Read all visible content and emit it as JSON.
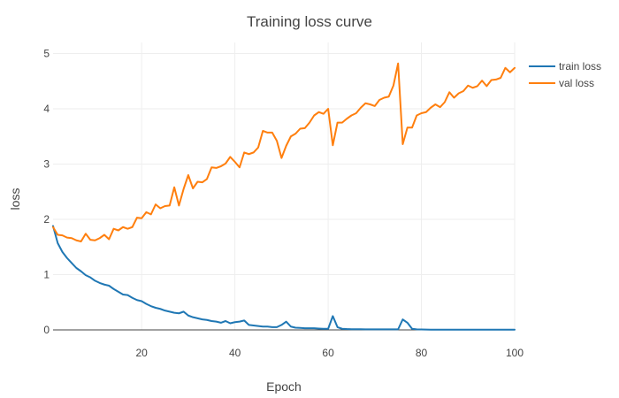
{
  "chart_data": {
    "type": "line",
    "title": "Training loss curve",
    "xlabel": "Epoch",
    "ylabel": "loss",
    "xlim": [
      1,
      100
    ],
    "ylim": [
      0,
      5.2
    ],
    "x_ticks": [
      20,
      40,
      60,
      80,
      100
    ],
    "y_ticks": [
      0,
      1,
      2,
      3,
      4,
      5
    ],
    "grid": true,
    "legend_position": "top-right",
    "x": [
      1,
      2,
      3,
      4,
      5,
      6,
      7,
      8,
      9,
      10,
      11,
      12,
      13,
      14,
      15,
      16,
      17,
      18,
      19,
      20,
      21,
      22,
      23,
      24,
      25,
      26,
      27,
      28,
      29,
      30,
      31,
      32,
      33,
      34,
      35,
      36,
      37,
      38,
      39,
      40,
      41,
      42,
      43,
      44,
      45,
      46,
      47,
      48,
      49,
      50,
      51,
      52,
      53,
      54,
      55,
      56,
      57,
      58,
      59,
      60,
      61,
      62,
      63,
      64,
      65,
      66,
      67,
      68,
      69,
      70,
      71,
      72,
      73,
      74,
      75,
      76,
      77,
      78,
      79,
      80,
      81,
      82,
      83,
      84,
      85,
      86,
      87,
      88,
      89,
      90,
      91,
      92,
      93,
      94,
      95,
      96,
      97,
      98,
      99,
      100
    ],
    "series": [
      {
        "name": "train loss",
        "color": "#1f77b4",
        "values": [
          1.88,
          1.57,
          1.41,
          1.3,
          1.21,
          1.12,
          1.06,
          0.99,
          0.95,
          0.89,
          0.85,
          0.82,
          0.8,
          0.74,
          0.69,
          0.64,
          0.63,
          0.58,
          0.54,
          0.52,
          0.47,
          0.43,
          0.4,
          0.38,
          0.35,
          0.33,
          0.31,
          0.3,
          0.33,
          0.26,
          0.23,
          0.21,
          0.19,
          0.18,
          0.16,
          0.15,
          0.13,
          0.16,
          0.12,
          0.14,
          0.15,
          0.17,
          0.09,
          0.08,
          0.07,
          0.06,
          0.06,
          0.05,
          0.05,
          0.09,
          0.15,
          0.06,
          0.04,
          0.035,
          0.03,
          0.03,
          0.03,
          0.025,
          0.02,
          0.02,
          0.25,
          0.05,
          0.02,
          0.015,
          0.012,
          0.012,
          0.012,
          0.01,
          0.01,
          0.01,
          0.01,
          0.01,
          0.01,
          0.01,
          0.01,
          0.19,
          0.13,
          0.02,
          0.01,
          0.008,
          0.006,
          0.005,
          0.005,
          0.005,
          0.005,
          0.004,
          0.004,
          0.004,
          0.004,
          0.004,
          0.003,
          0.003,
          0.003,
          0.003,
          0.003,
          0.003,
          0.003,
          0.003,
          0.003,
          0.003
        ]
      },
      {
        "name": "val loss",
        "color": "#ff7f0e",
        "values": [
          1.86,
          1.72,
          1.71,
          1.67,
          1.66,
          1.62,
          1.6,
          1.74,
          1.63,
          1.62,
          1.66,
          1.72,
          1.64,
          1.83,
          1.8,
          1.86,
          1.83,
          1.86,
          2.03,
          2.02,
          2.13,
          2.09,
          2.27,
          2.2,
          2.24,
          2.25,
          2.58,
          2.25,
          2.55,
          2.8,
          2.56,
          2.68,
          2.67,
          2.73,
          2.94,
          2.93,
          2.96,
          3.01,
          3.13,
          3.04,
          2.94,
          3.21,
          3.18,
          3.21,
          3.3,
          3.6,
          3.57,
          3.57,
          3.42,
          3.11,
          3.33,
          3.5,
          3.55,
          3.64,
          3.65,
          3.75,
          3.88,
          3.94,
          3.91,
          4,
          3.34,
          3.75,
          3.75,
          3.82,
          3.88,
          3.92,
          4.02,
          4.1,
          4.08,
          4.05,
          4.16,
          4.2,
          4.22,
          4.42,
          4.82,
          3.36,
          3.66,
          3.66,
          3.88,
          3.92,
          3.94,
          4.02,
          4.08,
          4.03,
          4.12,
          4.3,
          4.2,
          4.28,
          4.32,
          4.42,
          4.38,
          4.41,
          4.51,
          4.41,
          4.52,
          4.53,
          4.56,
          4.74,
          4.66,
          4.74
        ]
      }
    ]
  }
}
